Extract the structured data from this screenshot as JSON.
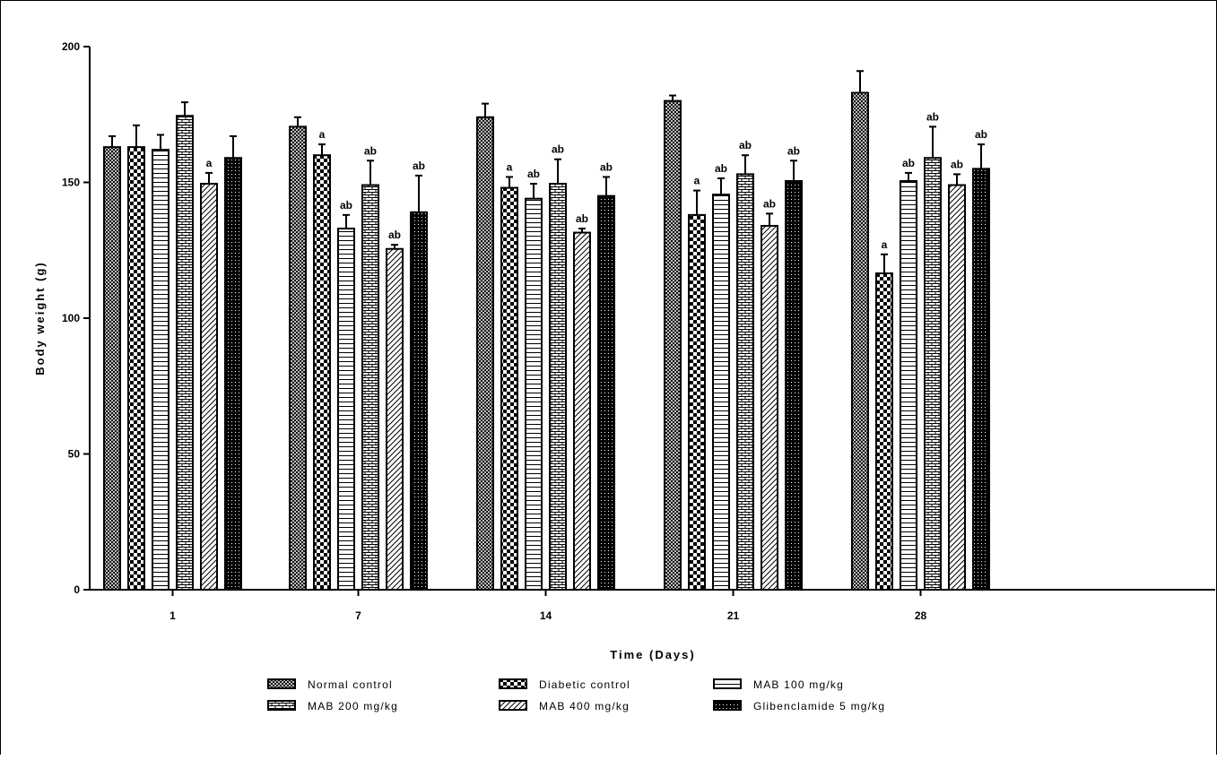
{
  "chart_data": {
    "type": "bar",
    "xlabel": "Time (Days)",
    "ylabel": "Body weight (g)",
    "ylim": [
      0,
      200
    ],
    "yticks": [
      0,
      50,
      100,
      150,
      200
    ],
    "categories": [
      "1",
      "7",
      "14",
      "21",
      "28"
    ],
    "series": [
      {
        "name": "Normal control",
        "pattern": "pat-crosshatch",
        "values": [
          163,
          170.5,
          174,
          180,
          183
        ],
        "errors": [
          4,
          3.5,
          5,
          2,
          8
        ],
        "labels": [
          "",
          "",
          "",
          "",
          ""
        ]
      },
      {
        "name": "Diabetic control",
        "pattern": "pat-checker",
        "values": [
          163,
          160,
          148,
          138,
          116.5
        ],
        "errors": [
          8,
          4,
          4,
          9,
          7
        ],
        "labels": [
          "",
          "a",
          "a",
          "a",
          "a"
        ]
      },
      {
        "name": "MAB 100 mg/kg",
        "pattern": "pat-hlines",
        "values": [
          162,
          133,
          144,
          145.5,
          150.5
        ],
        "errors": [
          5.5,
          5,
          5.5,
          6,
          3
        ],
        "labels": [
          "",
          "ab",
          "ab",
          "ab",
          "ab"
        ]
      },
      {
        "name": "MAB 200 mg/kg",
        "pattern": "pat-brick",
        "values": [
          174.5,
          149,
          149.5,
          153,
          159
        ],
        "errors": [
          5,
          9,
          9,
          7,
          11.5
        ],
        "labels": [
          "",
          "ab",
          "ab",
          "ab",
          "ab"
        ]
      },
      {
        "name": "MAB 400 mg/kg",
        "pattern": "pat-diag",
        "values": [
          149.5,
          125.5,
          131.5,
          134,
          149
        ],
        "errors": [
          4,
          1.5,
          1.5,
          4.5,
          4
        ],
        "labels": [
          "a",
          "ab",
          "ab",
          "ab",
          "ab"
        ]
      },
      {
        "name": "Glibenclamide 5 mg/kg",
        "pattern": "pat-dotted",
        "values": [
          159,
          139,
          145,
          150.5,
          155
        ],
        "errors": [
          8,
          13.5,
          7,
          7.5,
          9
        ],
        "labels": [
          "",
          "ab",
          "ab",
          "ab",
          "ab"
        ]
      }
    ],
    "grid": false,
    "legend": "bottom"
  }
}
